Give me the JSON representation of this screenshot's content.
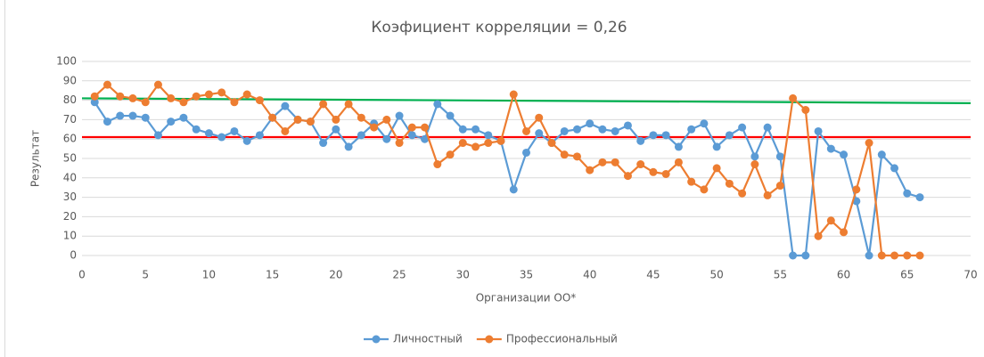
{
  "chart_data": {
    "type": "line",
    "title": "Коэфициент корреляции = 0,26",
    "x_label": "Организации ОО*",
    "y_label": "Результат",
    "x": [
      1,
      2,
      3,
      4,
      5,
      6,
      7,
      8,
      9,
      10,
      11,
      12,
      13,
      14,
      15,
      16,
      17,
      18,
      19,
      20,
      21,
      22,
      23,
      24,
      25,
      26,
      27,
      28,
      29,
      30,
      31,
      32,
      33,
      34,
      35,
      36,
      37,
      38,
      39,
      40,
      41,
      42,
      43,
      44,
      45,
      46,
      47,
      48,
      49,
      50,
      51,
      52,
      53,
      54,
      55,
      56,
      57,
      58,
      59,
      60,
      61,
      62,
      63,
      64,
      65,
      66
    ],
    "series": [
      {
        "name": "Личностный",
        "color": "#5b9bd5",
        "values": [
          79,
          69,
          72,
          72,
          71,
          62,
          69,
          71,
          65,
          63,
          61,
          64,
          59,
          62,
          71,
          77,
          70,
          69,
          58,
          65,
          56,
          62,
          68,
          60,
          72,
          62,
          60,
          78,
          72,
          65,
          65,
          62,
          59,
          34,
          53,
          63,
          58,
          64,
          65,
          68,
          65,
          64,
          67,
          59,
          62,
          62,
          56,
          65,
          68,
          56,
          62,
          66,
          51,
          66,
          51,
          0,
          0,
          64,
          55,
          52,
          28,
          0,
          52,
          45,
          32,
          30
        ]
      },
      {
        "name": "Профессиональный",
        "color": "#ed7d31",
        "values": [
          82,
          88,
          82,
          81,
          79,
          88,
          81,
          79,
          82,
          83,
          84,
          79,
          83,
          80,
          71,
          64,
          70,
          69,
          78,
          70,
          78,
          71,
          66,
          70,
          58,
          66,
          66,
          47,
          52,
          58,
          56,
          58,
          59,
          83,
          64,
          71,
          58,
          52,
          51,
          44,
          48,
          48,
          41,
          47,
          43,
          42,
          48,
          38,
          34,
          45,
          37,
          32,
          47,
          31,
          36,
          81,
          75,
          10,
          18,
          12,
          34,
          58,
          0,
          0,
          0,
          0
        ]
      }
    ],
    "reference_lines": [
      {
        "color": "#00b050",
        "x": [
          0,
          70
        ],
        "values": [
          81,
          78.5
        ]
      },
      {
        "color": "#ff0000",
        "x": [
          0,
          70
        ],
        "values": [
          61,
          61
        ]
      }
    ],
    "xlim": [
      0,
      70
    ],
    "xticks": [
      0,
      5,
      10,
      15,
      20,
      25,
      30,
      35,
      40,
      45,
      50,
      55,
      60,
      65,
      70
    ],
    "ylim": [
      0,
      100
    ],
    "yticks": [
      0,
      10,
      20,
      30,
      40,
      50,
      60,
      70,
      80,
      90,
      100
    ],
    "grid": true,
    "legend": "bottom"
  }
}
